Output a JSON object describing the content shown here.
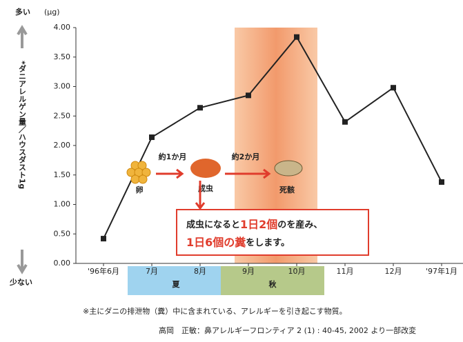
{
  "chart_data": {
    "type": "line",
    "top_label": "多い",
    "bottom_label": "少ない",
    "unit": "(μg)",
    "ylabel": "*ダニアレルゲン量／ハウスダスト1g",
    "categories": [
      "'96年6月",
      "7月",
      "8月",
      "9月",
      "10月",
      "11月",
      "12月",
      "'97年1月"
    ],
    "values": [
      0.42,
      2.14,
      2.64,
      2.85,
      3.84,
      2.4,
      2.98,
      1.38
    ],
    "color": "#222222",
    "ylim": [
      0,
      4
    ],
    "yticks": [
      {
        "value": 0,
        "label": "0.00"
      },
      {
        "value": 0.5,
        "label": "0.50"
      },
      {
        "value": 1,
        "label": "1.00"
      },
      {
        "value": 1.5,
        "label": "1.50"
      },
      {
        "value": 2,
        "label": "2.00"
      },
      {
        "value": 2.5,
        "label": "2.50"
      },
      {
        "value": 3,
        "label": "3.00"
      },
      {
        "value": 3.5,
        "label": "3.50"
      },
      {
        "value": 4,
        "label": "4.00"
      }
    ],
    "grid": false,
    "seasons": [
      "夏",
      "秋"
    ],
    "annotations": {
      "egg": "卵",
      "one_month": "約1か月",
      "adult": "成虫",
      "two_months": "約2か月",
      "dead": "死骸"
    },
    "callout": {
      "line1": [
        "成虫になると",
        "1日2個",
        "の",
        "を産み、"
      ],
      "line2": [
        "1日6個の糞",
        "をします。"
      ]
    },
    "footnote": "※主にダニの排泄物（糞）中に含まれている、アレルギーを引き起こす物質。",
    "source": "高岡　正敏：鼻アレルギーフロンティア 2 (1) : 40-45, 2002 より一部改変"
  }
}
